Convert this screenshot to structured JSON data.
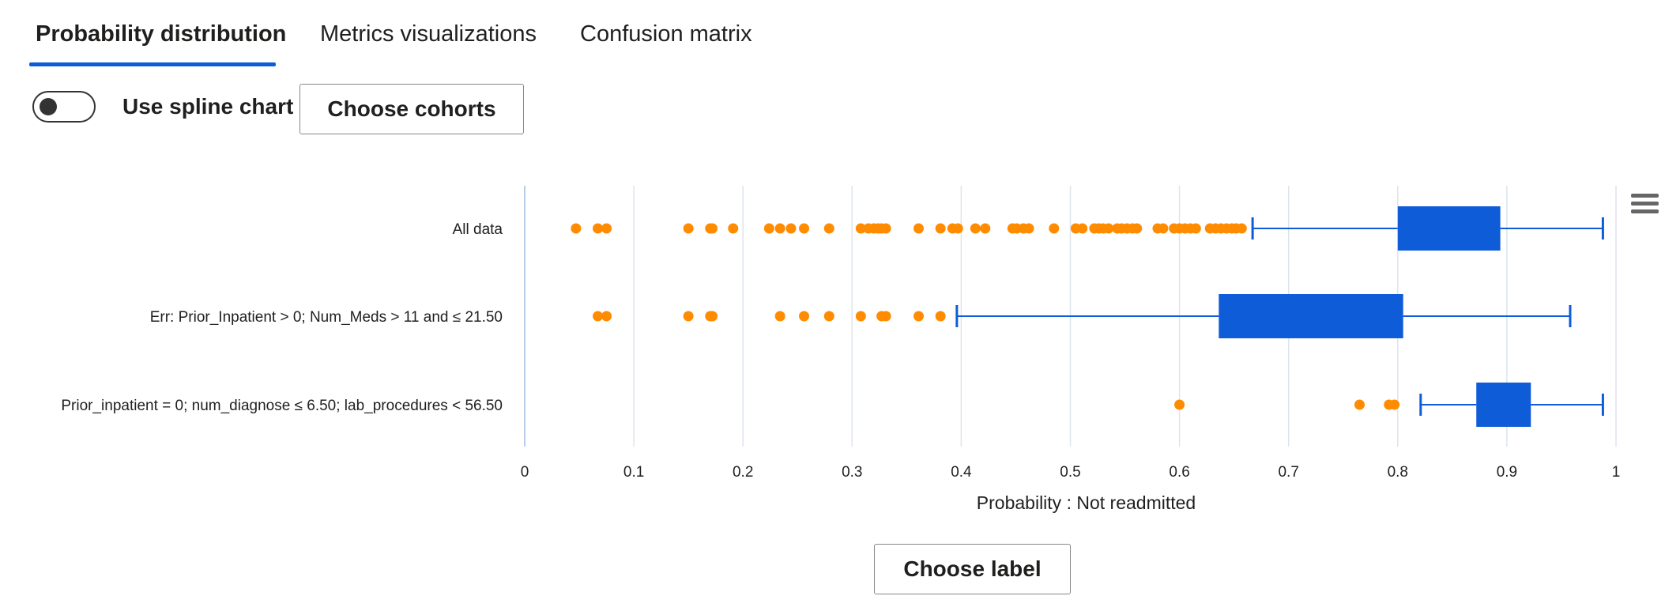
{
  "tabs": [
    {
      "label": "Probability distribution",
      "active": true
    },
    {
      "label": "Metrics visualizations",
      "active": false
    },
    {
      "label": "Confusion matrix",
      "active": false
    }
  ],
  "controls": {
    "spline_toggle_label": "Use spline chart",
    "spline_toggle_on": false,
    "choose_cohorts_label": "Choose cohorts",
    "choose_label_label": "Choose label"
  },
  "icons": {
    "chart_menu": "hamburger-menu-icon"
  },
  "colors": {
    "box": "#0f5cd9",
    "outlier": "#ff8c00",
    "tab_underline": "#0f5cd9",
    "grid": "#dde4ee",
    "axis": "#b8cde8"
  },
  "chart_data": {
    "type": "boxplot",
    "orientation": "horizontal",
    "xlabel": "Probability : Not readmitted",
    "xlim": [
      0,
      1
    ],
    "xticks": [
      "0",
      "0.1",
      "0.2",
      "0.3",
      "0.4",
      "0.5",
      "0.6",
      "0.7",
      "0.8",
      "0.9",
      "1"
    ],
    "grid": true,
    "categories": [
      "All data",
      "Err: Prior_Inpatient > 0; Num_Meds > 11 and ≤ 21.50",
      "Prior_inpatient = 0; num_diagnose ≤ 6.50; lab_procedures < 56.50"
    ],
    "series": [
      {
        "whisker_low": 0.667,
        "q1": 0.8,
        "q3": 0.894,
        "whisker_high": 0.988,
        "outliers": [
          0.047,
          0.067,
          0.075,
          0.15,
          0.17,
          0.172,
          0.191,
          0.224,
          0.234,
          0.244,
          0.256,
          0.279,
          0.308,
          0.315,
          0.32,
          0.324,
          0.327,
          0.331,
          0.361,
          0.381,
          0.392,
          0.397,
          0.413,
          0.422,
          0.447,
          0.451,
          0.457,
          0.462,
          0.485,
          0.505,
          0.511,
          0.522,
          0.526,
          0.53,
          0.535,
          0.543,
          0.547,
          0.552,
          0.557,
          0.561,
          0.58,
          0.585,
          0.595,
          0.6,
          0.605,
          0.61,
          0.615,
          0.628,
          0.633,
          0.638,
          0.643,
          0.648,
          0.652,
          0.657
        ]
      },
      {
        "whisker_low": 0.396,
        "q1": 0.636,
        "q3": 0.805,
        "whisker_high": 0.958,
        "outliers": [
          0.067,
          0.075,
          0.15,
          0.17,
          0.172,
          0.234,
          0.256,
          0.279,
          0.308,
          0.327,
          0.331,
          0.361,
          0.381
        ]
      },
      {
        "whisker_low": 0.821,
        "q1": 0.872,
        "q3": 0.922,
        "whisker_high": 0.988,
        "outliers": [
          0.6,
          0.765,
          0.792,
          0.797
        ]
      }
    ]
  }
}
